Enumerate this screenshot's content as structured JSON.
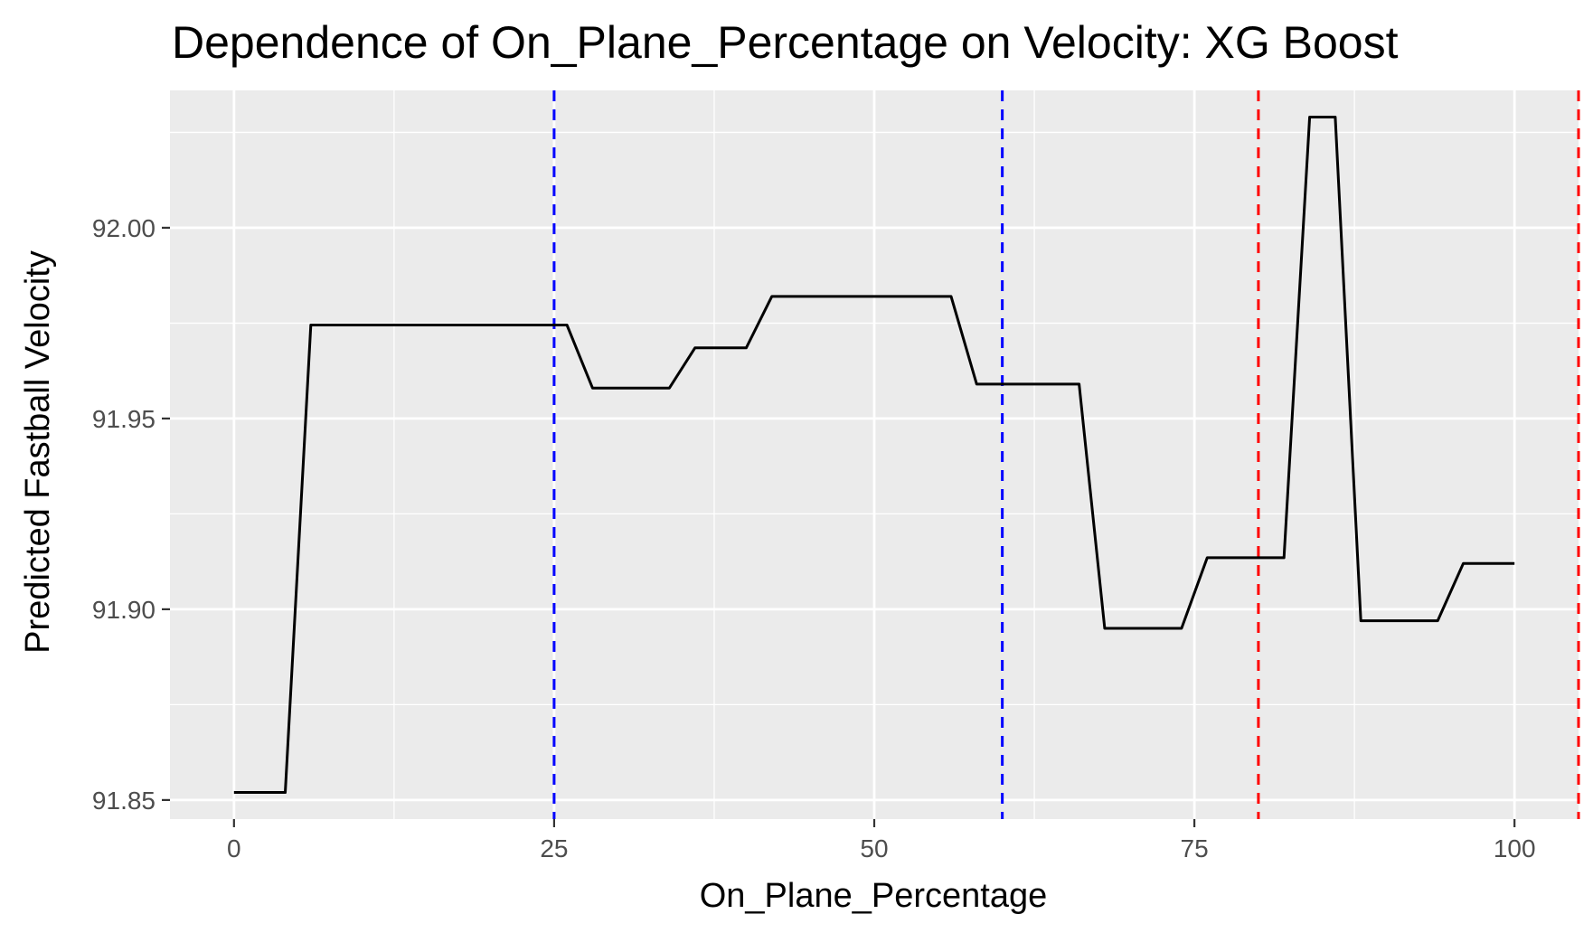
{
  "chart_data": {
    "type": "line",
    "title": "Dependence of On_Plane_Percentage on Velocity: XG Boost",
    "xlabel": "On_Plane_Percentage",
    "ylabel": "Predicted Fastball Velocity",
    "xlim": [
      -5,
      105
    ],
    "ylim": [
      91.845,
      92.036
    ],
    "x_ticks": [
      0,
      25,
      50,
      75,
      100
    ],
    "x_minor_ticks": [
      12.5,
      37.5,
      62.5,
      87.5
    ],
    "y_ticks": [
      91.85,
      91.9,
      91.95,
      92.0
    ],
    "y_minor_ticks": [
      91.875,
      91.925,
      91.975,
      92.025
    ],
    "x_tick_labels": [
      "0",
      "25",
      "50",
      "75",
      "100"
    ],
    "y_tick_labels": [
      "91.85",
      "91.90",
      "91.95",
      "92.00"
    ],
    "grid": true,
    "panel_background": "#ebebeb",
    "series": [
      {
        "color": "#000000",
        "x": [
          0,
          4,
          6,
          26,
          28,
          34,
          36,
          40,
          42,
          56,
          58,
          66,
          68,
          74,
          76,
          82,
          84,
          86,
          88,
          94,
          96,
          100
        ],
        "y": [
          91.852,
          91.852,
          91.9745,
          91.9745,
          91.958,
          91.958,
          91.9685,
          91.9685,
          91.982,
          91.982,
          91.959,
          91.959,
          91.895,
          91.895,
          91.9135,
          91.9135,
          92.029,
          92.029,
          91.897,
          91.897,
          91.912,
          91.912
        ]
      }
    ],
    "reference_lines": [
      {
        "x": 25,
        "color": "#0000ff",
        "style": "dashed"
      },
      {
        "x": 60,
        "color": "#0000ff",
        "style": "dashed"
      },
      {
        "x": 80,
        "color": "#ff0000",
        "style": "dashed"
      },
      {
        "x": 105,
        "color": "#ff0000",
        "style": "dashed"
      }
    ]
  }
}
